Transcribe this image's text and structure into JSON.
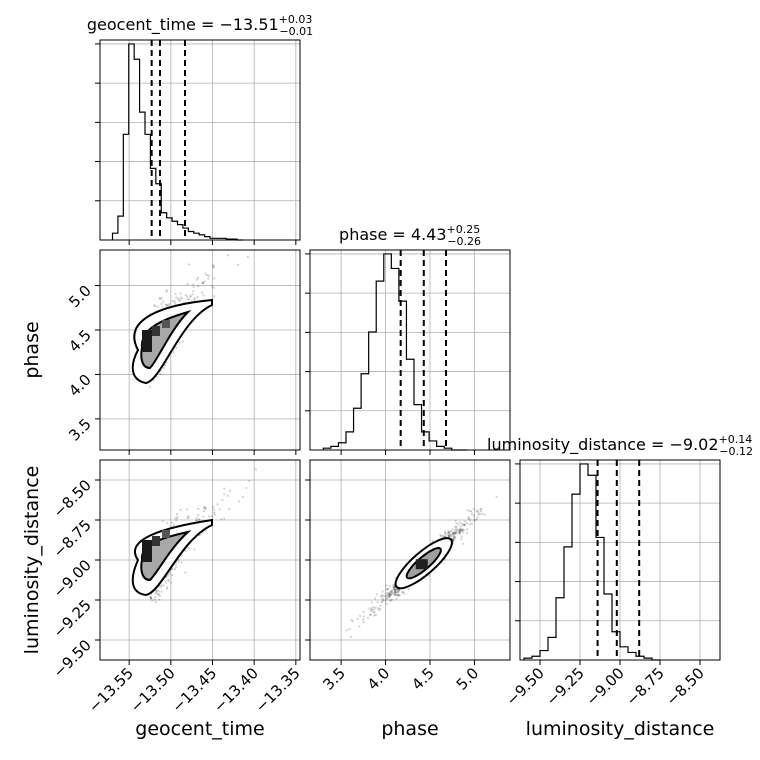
{
  "chart_data": {
    "type": "corner",
    "parameters": [
      {
        "key": "geocent_time",
        "label": "geocent_time",
        "title_name": "geocent_time",
        "median": "-13.51",
        "upper": "+0.03",
        "lower": "-0.01",
        "range": [
          -13.585,
          -13.345
        ],
        "ticks": [
          -13.55,
          -13.5,
          -13.45,
          -13.4,
          -13.35
        ],
        "tick_labels": [
          "−13.55",
          "−13.50",
          "−13.45",
          "−13.40",
          "−13.35"
        ],
        "quantiles": [
          -13.523,
          -13.513,
          -13.483
        ],
        "hist": {
          "start": -13.57,
          "width": 0.0065,
          "counts": [
            4,
            14,
            62,
            115,
            106,
            75,
            62,
            42,
            33,
            16,
            13,
            11,
            9,
            7,
            5,
            4,
            3,
            2,
            1,
            1,
            1,
            0.5,
            0.5,
            0
          ]
        }
      },
      {
        "key": "phase",
        "label": "phase",
        "title_name": "phase",
        "median": "4.43",
        "upper": "+0.25",
        "lower": "-0.26",
        "range": [
          3.15,
          5.4
        ],
        "ticks": [
          3.5,
          4.0,
          4.5,
          5.0
        ],
        "tick_labels": [
          "3.5",
          "4.0",
          "4.5",
          "5.0"
        ],
        "quantiles": [
          4.17,
          4.43,
          4.68
        ],
        "hist": {
          "start": 3.3,
          "width": 0.085,
          "counts": [
            1,
            2,
            4,
            10,
            23,
            42,
            65,
            93,
            108,
            100,
            82,
            50,
            25,
            10,
            5,
            2,
            1,
            0,
            0
          ]
        }
      },
      {
        "key": "luminosity_distance",
        "label": "luminosity_distance",
        "title_name": "luminosity_distance",
        "median": "-9.02",
        "upper": "+0.14",
        "lower": "-0.12",
        "range": [
          -9.625,
          -8.375
        ],
        "ticks": [
          -9.5,
          -9.25,
          -9.0,
          -8.75,
          -8.5
        ],
        "tick_labels": [
          "−9.50",
          "−9.25",
          "−9.00",
          "−8.75",
          "−8.50"
        ],
        "quantiles": [
          -9.14,
          -9.02,
          -8.88
        ],
        "hist": {
          "start": -9.6,
          "width": 0.05,
          "counts": [
            1,
            2,
            5,
            12,
            33,
            60,
            88,
            104,
            98,
            65,
            35,
            15,
            7,
            4,
            2,
            1,
            0
          ]
        }
      }
    ],
    "pairs": [
      {
        "x": "geocent_time",
        "y": "phase"
      },
      {
        "x": "geocent_time",
        "y": "luminosity_distance"
      },
      {
        "x": "phase",
        "y": "luminosity_distance"
      }
    ],
    "grid": true
  }
}
